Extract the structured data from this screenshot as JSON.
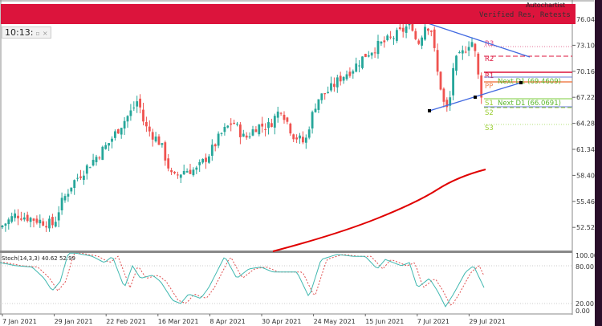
{
  "window": {
    "time": "10:13:",
    "close_label": "×",
    "restore_label": "▫",
    "provider": "Autochartist",
    "pattern_label": "Verified Res, Retests"
  },
  "price_axis": [
    "76.04",
    "73.10",
    "70.16",
    "67.22",
    "64.28",
    "61.34",
    "58.40",
    "55.46",
    "52.52"
  ],
  "date_axis": [
    "7 Jan 2021",
    "29 Jan 2021",
    "22 Feb 2021",
    "16 Mar 2021",
    "8 Apr 2021",
    "30 Apr 2021",
    "24 May 2021",
    "15 Jun 2021",
    "7 Jul 2021",
    "29 Jul 2021"
  ],
  "levels": {
    "r3": "R3",
    "r2": "R2",
    "r1": "R1",
    "pp": "PP",
    "s1": "S1",
    "s2": "S2",
    "s3": "S3",
    "next_high": "Next D1 (69.4609)",
    "next_low": "Next D1 (66.0691)"
  },
  "stoch": {
    "label": "Stoch(14,3,3) 40.62 52.99",
    "axis": [
      "100.00",
      "80.00",
      "20.00",
      "0.00"
    ]
  },
  "colors": {
    "bull": "#26a69a",
    "bear": "#ef5350",
    "banner": "#dc143c",
    "ma": "#e00000",
    "triangle": "#4169e1"
  },
  "chart_data": {
    "type": "candlestick",
    "price_approx": [
      [
        0,
        52.5
      ],
      [
        20,
        54
      ],
      [
        40,
        53.5
      ],
      [
        60,
        53
      ],
      [
        67,
        52.8
      ],
      [
        75,
        55
      ],
      [
        90,
        57.5
      ],
      [
        105,
        59
      ],
      [
        120,
        60.5
      ],
      [
        135,
        62
      ],
      [
        150,
        64
      ],
      [
        165,
        65.8
      ],
      [
        172,
        67
      ],
      [
        180,
        64
      ],
      [
        200,
        62
      ],
      [
        215,
        58
      ],
      [
        230,
        59
      ],
      [
        245,
        59
      ],
      [
        262,
        61
      ],
      [
        275,
        63
      ],
      [
        290,
        64.5
      ],
      [
        305,
        62.5
      ],
      [
        320,
        64
      ],
      [
        335,
        64
      ],
      [
        350,
        66
      ],
      [
        365,
        63
      ],
      [
        380,
        62
      ],
      [
        385,
        64
      ],
      [
        395,
        67
      ],
      [
        410,
        68
      ],
      [
        425,
        69.5
      ],
      [
        440,
        70.5
      ],
      [
        455,
        72
      ],
      [
        470,
        73
      ],
      [
        490,
        74
      ],
      [
        505,
        75
      ],
      [
        512,
        76
      ],
      [
        520,
        73
      ],
      [
        530,
        75.5
      ],
      [
        537,
        75
      ],
      [
        545,
        70
      ],
      [
        550,
        68
      ],
      [
        555,
        65.5
      ],
      [
        560,
        66.5
      ],
      [
        565,
        71
      ],
      [
        575,
        72
      ],
      [
        585,
        73.5
      ],
      [
        590,
        73.5
      ],
      [
        595,
        70
      ],
      [
        600,
        67.5
      ]
    ],
    "stoch_approx": [
      [
        0,
        85
      ],
      [
        20,
        80
      ],
      [
        40,
        78
      ],
      [
        55,
        60
      ],
      [
        65,
        40
      ],
      [
        75,
        55
      ],
      [
        85,
        100
      ],
      [
        95,
        100
      ],
      [
        115,
        95
      ],
      [
        130,
        85
      ],
      [
        140,
        95
      ],
      [
        155,
        45
      ],
      [
        165,
        80
      ],
      [
        175,
        60
      ],
      [
        190,
        65
      ],
      [
        200,
        55
      ],
      [
        215,
        25
      ],
      [
        225,
        20
      ],
      [
        235,
        35
      ],
      [
        250,
        28
      ],
      [
        260,
        45
      ],
      [
        280,
        95
      ],
      [
        295,
        60
      ],
      [
        310,
        75
      ],
      [
        325,
        78
      ],
      [
        340,
        70
      ],
      [
        370,
        70
      ],
      [
        385,
        30
      ],
      [
        400,
        90
      ],
      [
        420,
        98
      ],
      [
        440,
        95
      ],
      [
        455,
        95
      ],
      [
        470,
        75
      ],
      [
        480,
        90
      ],
      [
        500,
        80
      ],
      [
        510,
        85
      ],
      [
        520,
        45
      ],
      [
        535,
        60
      ],
      [
        545,
        40
      ],
      [
        555,
        15
      ],
      [
        565,
        35
      ],
      [
        580,
        70
      ],
      [
        590,
        80
      ],
      [
        605,
        40
      ]
    ]
  }
}
